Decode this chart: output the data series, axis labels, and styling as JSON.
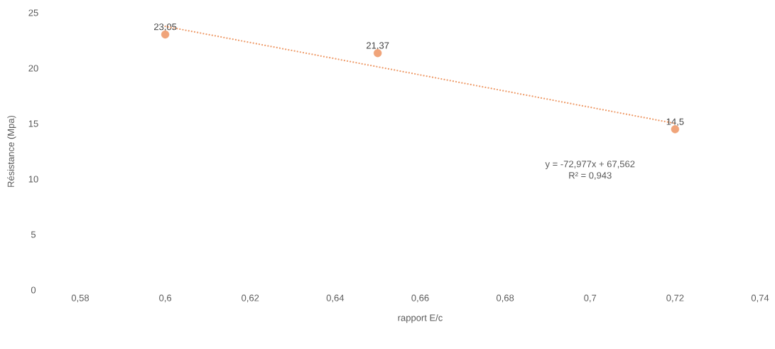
{
  "chart_data": {
    "type": "scatter",
    "xlabel": "rapport E/c",
    "ylabel": "Résistance (Mpa)",
    "series": [
      {
        "type": "scatter",
        "color": "#f0a47a",
        "x": [
          0.6,
          0.65,
          0.72
        ],
        "values": [
          23.05,
          21.37,
          14.5
        ],
        "value_labels": [
          "23,05",
          "21,37",
          "14,5"
        ],
        "marker": "circle"
      },
      {
        "type": "line",
        "color": "#ee9a68",
        "line_style": "dotted",
        "x": [
          0.6,
          0.72
        ],
        "values": [
          23.78,
          15.02
        ],
        "marker": "none"
      }
    ],
    "annotations": [
      "y = -72,977x + 67,562",
      "R² = 0,943"
    ],
    "xlim": [
      0.58,
      0.74
    ],
    "xticks": [
      {
        "value": 0.58,
        "label": "0,58"
      },
      {
        "value": 0.6,
        "label": "0,6"
      },
      {
        "value": 0.62,
        "label": "0,62"
      },
      {
        "value": 0.64,
        "label": "0,64"
      },
      {
        "value": 0.66,
        "label": "0,66"
      },
      {
        "value": 0.68,
        "label": "0,68"
      },
      {
        "value": 0.7,
        "label": "0,7"
      },
      {
        "value": 0.72,
        "label": "0,72"
      },
      {
        "value": 0.74,
        "label": "0,74"
      }
    ],
    "ylim": [
      0,
      25
    ],
    "yticks": [
      0,
      5,
      10,
      15,
      20,
      25
    ]
  }
}
